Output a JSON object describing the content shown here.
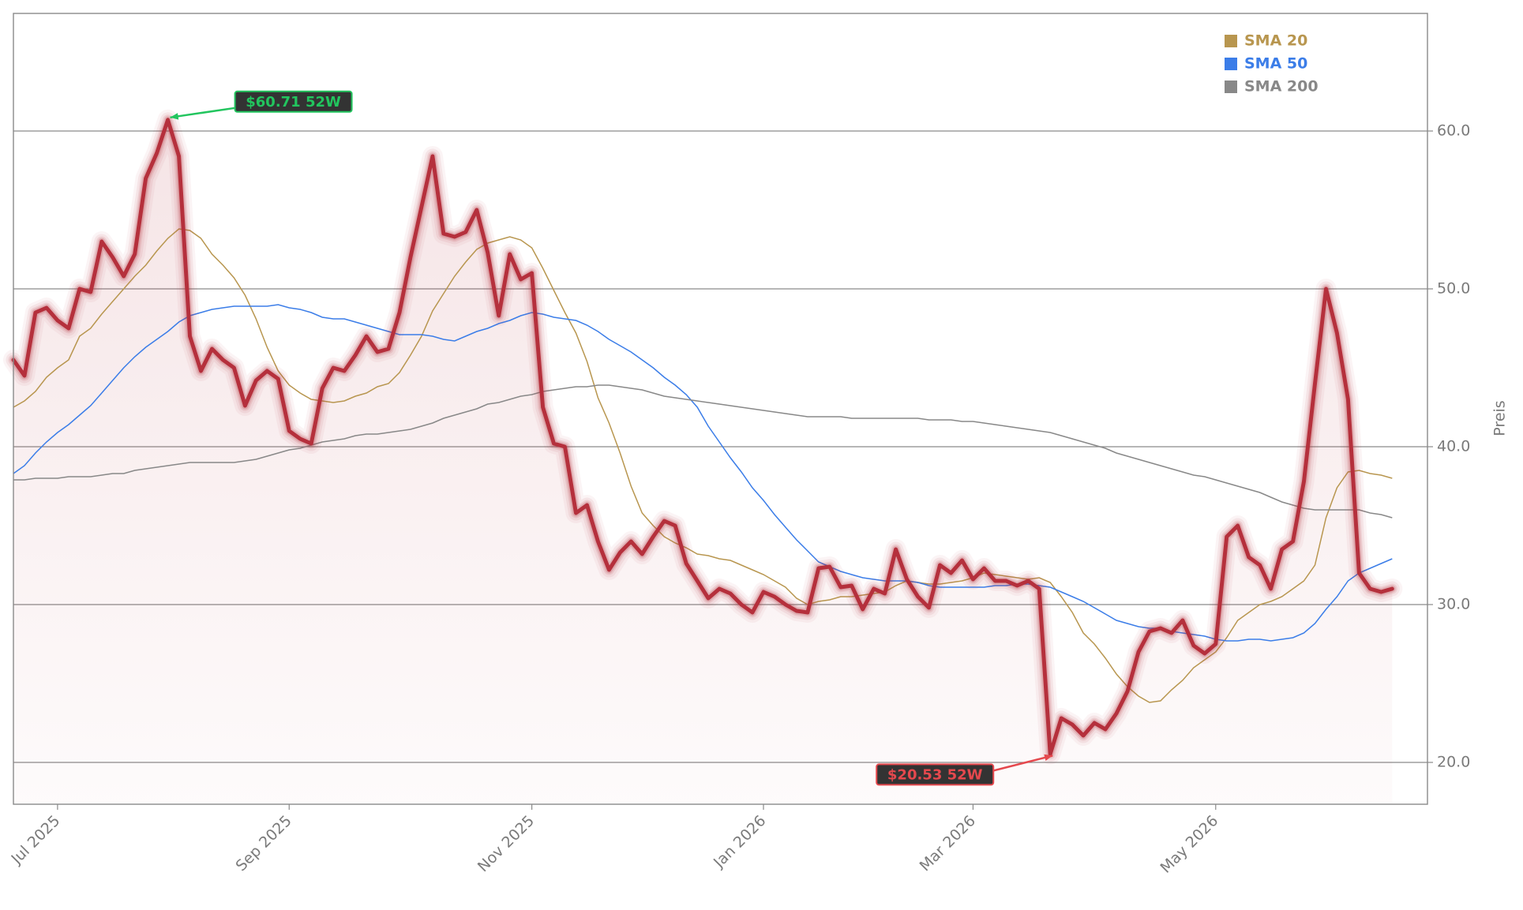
{
  "chart_data": {
    "type": "line",
    "y_label": "Preis",
    "categories": [
      null,
      null,
      null,
      null,
      "Jul 2025",
      null,
      null,
      null,
      null,
      null,
      null,
      null,
      null,
      null,
      null,
      null,
      null,
      null,
      null,
      null,
      null,
      null,
      null,
      null,
      null,
      "Sep 2025",
      null,
      null,
      null,
      null,
      null,
      null,
      null,
      null,
      null,
      null,
      null,
      null,
      null,
      null,
      null,
      null,
      null,
      null,
      null,
      null,
      null,
      "Nov 2025",
      null,
      null,
      null,
      null,
      null,
      null,
      null,
      null,
      null,
      null,
      null,
      null,
      null,
      null,
      null,
      null,
      null,
      null,
      null,
      null,
      "Jan 2026",
      null,
      null,
      null,
      null,
      null,
      null,
      null,
      null,
      null,
      null,
      null,
      null,
      null,
      null,
      null,
      null,
      null,
      null,
      "Mar 2026",
      null,
      null,
      null,
      null,
      null,
      null,
      null,
      null,
      null,
      null,
      null,
      null,
      null,
      null,
      null,
      null,
      null,
      null,
      null,
      null,
      null,
      "May 2026",
      null,
      null,
      null,
      null,
      null,
      null,
      null,
      null,
      null,
      null,
      null,
      null,
      null,
      null,
      null,
      null
    ],
    "series": [
      {
        "color": "#b5303c",
        "values": [
          45.5,
          44.5,
          48.5,
          48.8,
          48,
          47.5,
          50,
          49.8,
          53,
          52,
          50.8,
          52.2,
          57,
          58.6,
          60.71,
          58.4,
          47,
          44.8,
          46.2,
          45.5,
          45,
          42.6,
          44.2,
          44.8,
          44.3,
          41,
          40.5,
          40.2,
          43.7,
          45,
          44.8,
          45.8,
          47,
          46,
          46.2,
          48.5,
          52,
          55.2,
          58.4,
          53.5,
          53.3,
          53.6,
          55,
          52.3,
          48.3,
          52.2,
          50.6,
          51,
          42.5,
          40.2,
          40,
          35.8,
          36.3,
          34,
          32.2,
          33.3,
          34,
          33.2,
          34.3,
          35.3,
          35,
          32.6,
          31.5,
          30.4,
          31,
          30.7,
          30,
          29.5,
          30.8,
          30.5,
          30,
          29.6,
          29.5,
          32.3,
          32.4,
          31.1,
          31.2,
          29.7,
          31,
          30.7,
          33.5,
          31.6,
          30.5,
          29.8,
          32.5,
          32,
          32.8,
          31.6,
          32.3,
          31.5,
          31.5,
          31.2,
          31.5,
          31,
          20.53,
          22.8,
          22.4,
          21.7,
          22.5,
          22.1,
          23.1,
          24.5,
          27,
          28.3,
          28.5,
          28.2,
          29,
          27.4,
          26.9,
          27.5,
          34.3,
          35,
          33,
          32.5,
          31,
          33.5,
          34,
          37.8,
          44,
          50,
          47.2,
          43,
          32,
          31,
          30.8,
          31
        ]
      },
      {
        "name": "SMA 20",
        "color": "#b8964f",
        "values": [
          42.5,
          42.9,
          43.5,
          44.4,
          45,
          45.5,
          47,
          47.5,
          48.4,
          49.2,
          50,
          50.8,
          51.5,
          52.4,
          53.2,
          53.8,
          53.7,
          53.2,
          52.2,
          51.5,
          50.7,
          49.6,
          48.1,
          46.3,
          44.8,
          43.9,
          43.4,
          43,
          42.9,
          42.8,
          42.9,
          43.2,
          43.4,
          43.8,
          44,
          44.7,
          45.8,
          47,
          48.6,
          49.7,
          50.8,
          51.7,
          52.5,
          52.9,
          53.1,
          53.3,
          53.1,
          52.6,
          51.3,
          49.9,
          48.5,
          47.2,
          45.4,
          43.1,
          41.5,
          39.6,
          37.5,
          35.8,
          35,
          34.3,
          33.9,
          33.6,
          33.2,
          33.1,
          32.9,
          32.8,
          32.5,
          32.2,
          31.9,
          31.5,
          31.1,
          30.4,
          30,
          30.2,
          30.3,
          30.5,
          30.5,
          30.6,
          30.7,
          30.8,
          31.2,
          31.5,
          31.4,
          31.3,
          31.3,
          31.4,
          31.5,
          31.7,
          32,
          31.9,
          31.8,
          31.7,
          31.6,
          31.7,
          31.4,
          30.5,
          29.5,
          28.2,
          27.5,
          26.6,
          25.6,
          24.8,
          24.2,
          23.8,
          23.9,
          24.6,
          25.2,
          26,
          26.5,
          27,
          27.9,
          29,
          29.5,
          30,
          30.2,
          30.5,
          31,
          31.5,
          32.5,
          35.5,
          37.4,
          38.4,
          38.5,
          38.3,
          38.2,
          38
        ]
      },
      {
        "name": "SMA 50",
        "color": "#3b7de8",
        "values": [
          38.3,
          38.8,
          39.6,
          40.3,
          40.9,
          41.4,
          42,
          42.6,
          43.4,
          44.2,
          45,
          45.7,
          46.3,
          46.8,
          47.3,
          47.9,
          48.3,
          48.5,
          48.7,
          48.8,
          48.9,
          48.9,
          48.9,
          48.9,
          49,
          48.8,
          48.7,
          48.5,
          48.2,
          48.1,
          48.1,
          47.9,
          47.7,
          47.5,
          47.3,
          47.1,
          47.1,
          47.1,
          47,
          46.8,
          46.7,
          47,
          47.3,
          47.5,
          47.8,
          48,
          48.3,
          48.5,
          48.4,
          48.2,
          48.1,
          48,
          47.7,
          47.3,
          46.8,
          46.4,
          46,
          45.5,
          45,
          44.4,
          43.9,
          43.3,
          42.5,
          41.3,
          40.3,
          39.3,
          38.4,
          37.4,
          36.6,
          35.7,
          34.9,
          34.1,
          33.4,
          32.7,
          32.4,
          32.1,
          31.9,
          31.7,
          31.6,
          31.5,
          31.5,
          31.5,
          31.4,
          31.2,
          31.1,
          31.1,
          31.1,
          31.1,
          31.1,
          31.2,
          31.2,
          31.3,
          31.3,
          31.2,
          31.1,
          30.8,
          30.5,
          30.2,
          29.8,
          29.4,
          29,
          28.8,
          28.6,
          28.5,
          28.5,
          28.3,
          28.2,
          28.1,
          28,
          27.8,
          27.7,
          27.7,
          27.8,
          27.8,
          27.7,
          27.8,
          27.9,
          28.2,
          28.8,
          29.7,
          30.5,
          31.5,
          32,
          32.3,
          32.6,
          32.9
        ]
      },
      {
        "name": "SMA 200",
        "color": "#888888",
        "values": [
          37.9,
          37.9,
          38,
          38,
          38,
          38.1,
          38.1,
          38.1,
          38.2,
          38.3,
          38.3,
          38.5,
          38.6,
          38.7,
          38.8,
          38.9,
          39,
          39,
          39,
          39,
          39,
          39.1,
          39.2,
          39.4,
          39.6,
          39.8,
          39.9,
          40.1,
          40.3,
          40.4,
          40.5,
          40.7,
          40.8,
          40.8,
          40.9,
          41,
          41.1,
          41.3,
          41.5,
          41.8,
          42,
          42.2,
          42.4,
          42.7,
          42.8,
          43,
          43.2,
          43.3,
          43.5,
          43.6,
          43.7,
          43.8,
          43.8,
          43.9,
          43.9,
          43.8,
          43.7,
          43.6,
          43.4,
          43.2,
          43.1,
          43,
          42.9,
          42.8,
          42.7,
          42.6,
          42.5,
          42.4,
          42.3,
          42.2,
          42.1,
          42,
          41.9,
          41.9,
          41.9,
          41.9,
          41.8,
          41.8,
          41.8,
          41.8,
          41.8,
          41.8,
          41.8,
          41.7,
          41.7,
          41.7,
          41.6,
          41.6,
          41.5,
          41.4,
          41.3,
          41.2,
          41.1,
          41,
          40.9,
          40.7,
          40.5,
          40.3,
          40.1,
          39.9,
          39.6,
          39.4,
          39.2,
          39,
          38.8,
          38.6,
          38.4,
          38.2,
          38.1,
          37.9,
          37.7,
          37.5,
          37.3,
          37.1,
          36.8,
          36.5,
          36.3,
          36.1,
          36,
          36,
          36,
          36,
          36,
          35.8,
          35.7,
          35.5
        ]
      }
    ],
    "ylim": [
      17.35,
      67.45
    ],
    "yticks": [
      {
        "value": 20,
        "label": "20.0"
      },
      {
        "value": 30,
        "label": "30.0"
      },
      {
        "value": 40,
        "label": "40.0"
      },
      {
        "value": 50,
        "label": "50.0"
      },
      {
        "value": 60,
        "label": "60.0"
      }
    ],
    "grid": true,
    "legend": "upper right",
    "annotations": {
      "high": {
        "text": "$60.71 52W",
        "color": "#22c55e"
      },
      "low": {
        "text": "$20.53 52W",
        "color": "#e5484d"
      }
    }
  }
}
